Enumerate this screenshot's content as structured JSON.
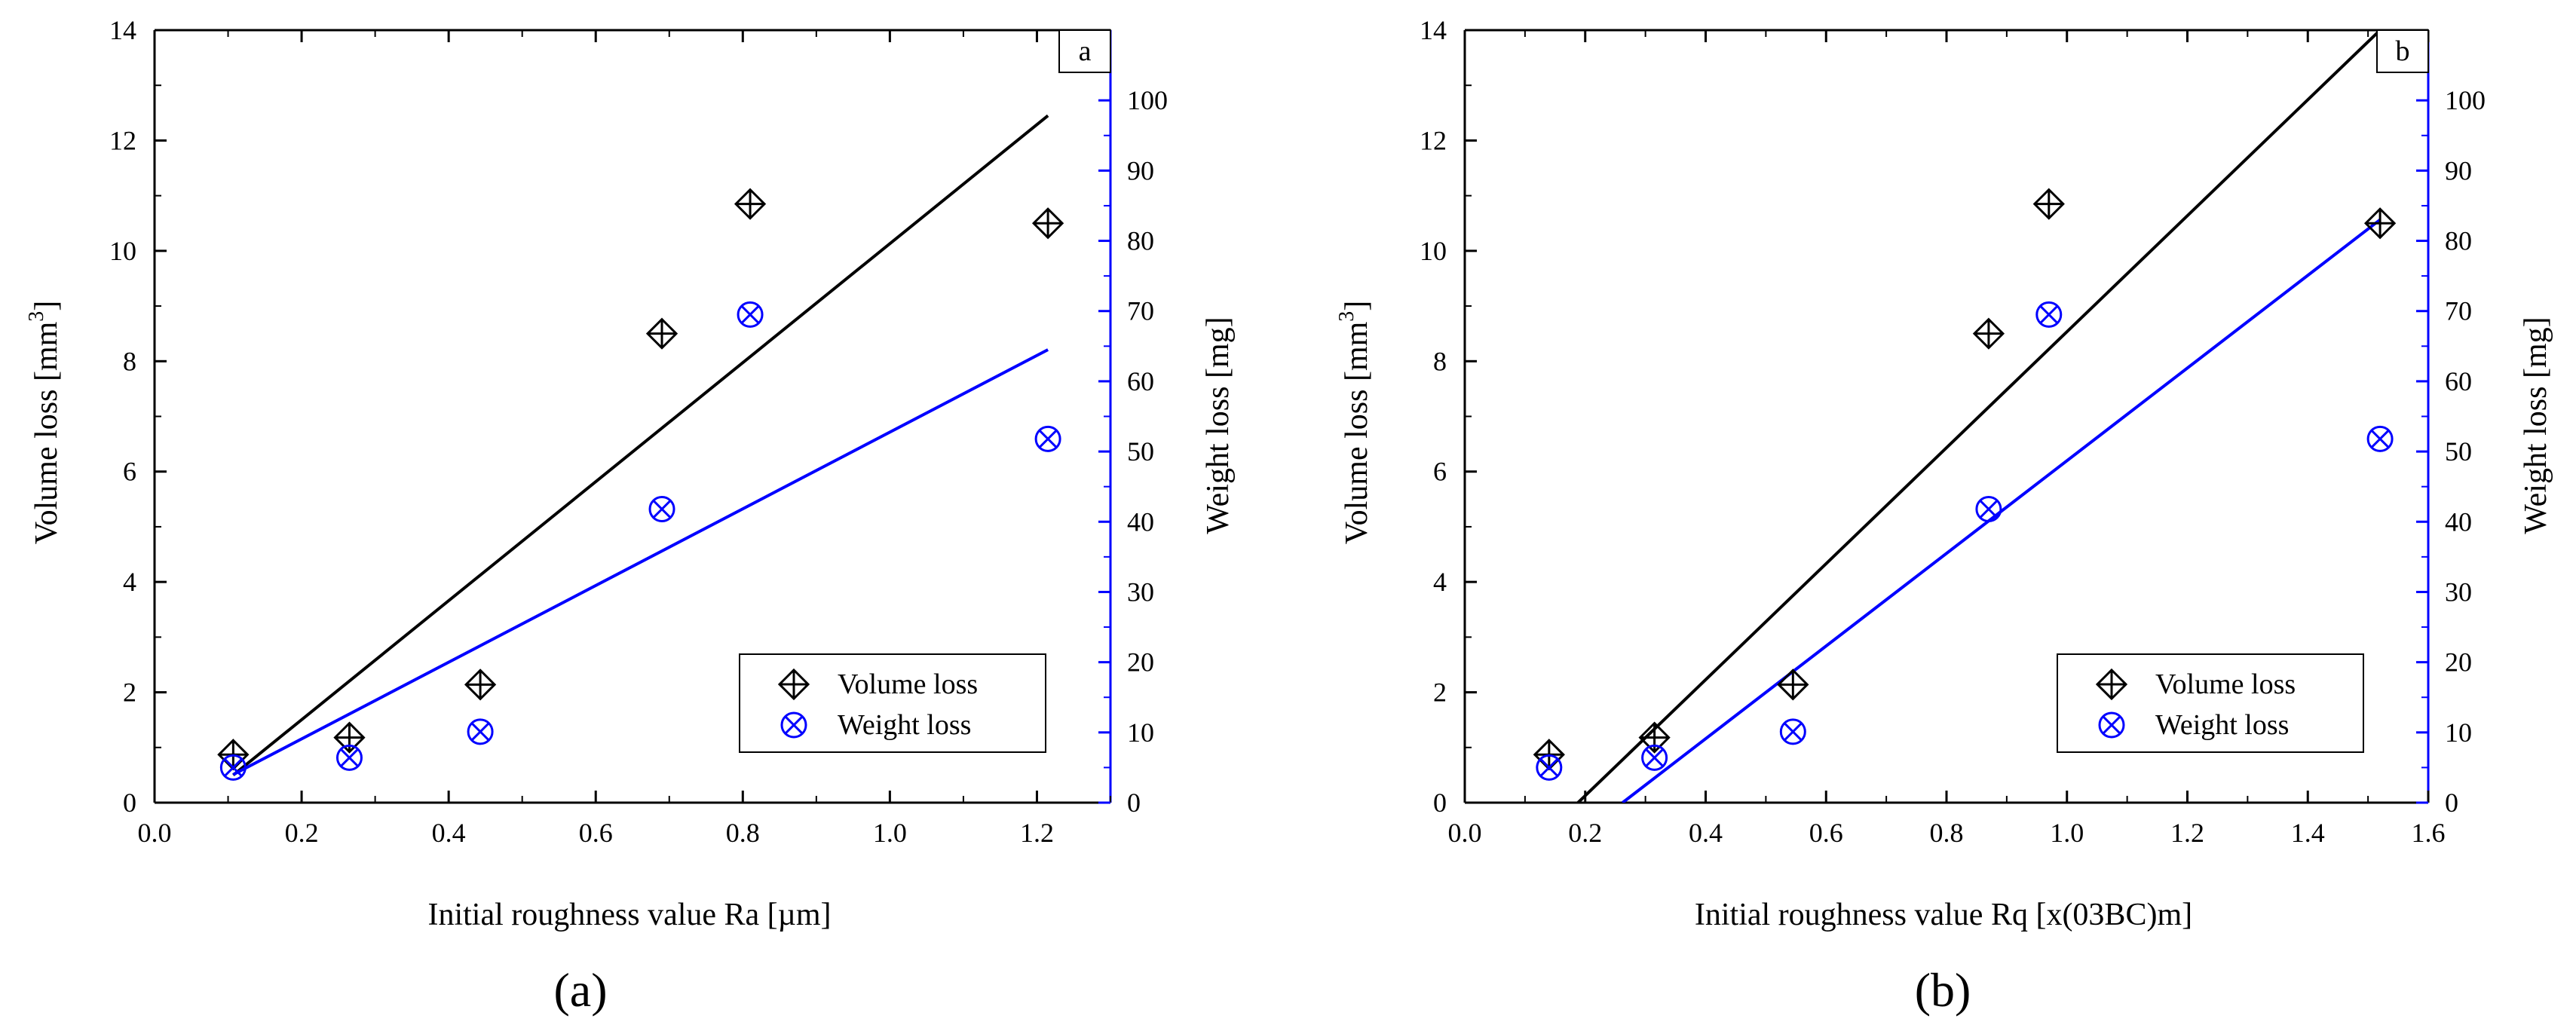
{
  "colors": {
    "volume": "#000000",
    "weight": "#0000ff",
    "axis_right": "#0000ff"
  },
  "chart_data": [
    {
      "type": "scatter",
      "panel_letter": "a",
      "caption": "(a)",
      "xlabel": "Initial roughness value Ra [µm]",
      "ylabel_left": "Volume loss [mm",
      "ylabel_left_sup": "3",
      "ylabel_left_end": "]",
      "ylabel_right": "Weight loss [mg]",
      "xlim": [
        0,
        1.3
      ],
      "ylim_left": [
        0,
        14
      ],
      "ylim_right": [
        0,
        110
      ],
      "x_ticks": [
        0,
        0.2,
        0.4,
        0.6,
        0.8,
        1.0,
        1.2
      ],
      "x_tick_labels": [
        "0.0",
        "0.2",
        "0.4",
        "0.6",
        "0.8",
        "1.0",
        "1.2"
      ],
      "y_left_ticks": [
        0,
        2,
        4,
        6,
        8,
        10,
        12,
        14
      ],
      "y_left_tick_labels": [
        "0",
        "2",
        "4",
        "6",
        "8",
        "10",
        "12",
        "14"
      ],
      "y_right_ticks": [
        0,
        10,
        20,
        30,
        40,
        50,
        60,
        70,
        80,
        90,
        100
      ],
      "y_right_tick_labels": [
        "0",
        "10",
        "20",
        "30",
        "40",
        "50",
        "60",
        "70",
        "80",
        "90",
        "100"
      ],
      "series": [
        {
          "name": "Volume loss",
          "axis": "left",
          "marker": "diamond-plus",
          "x": [
            0.107,
            0.265,
            0.443,
            0.69,
            0.81,
            1.215
          ],
          "y": [
            0.87,
            1.18,
            2.14,
            8.5,
            10.85,
            10.5
          ],
          "fit": {
            "x": [
              0.107,
              1.215
            ],
            "y": [
              0.5,
              12.45
            ]
          }
        },
        {
          "name": "Weight loss",
          "axis": "right",
          "marker": "circle-x",
          "x": [
            0.107,
            0.265,
            0.443,
            0.69,
            0.81,
            1.215
          ],
          "y": [
            5.0,
            6.4,
            10.1,
            41.8,
            69.5,
            51.8
          ],
          "fit": {
            "x": [
              0.107,
              1.215
            ],
            "y": [
              4.0,
              64.5
            ]
          }
        }
      ],
      "legend": {
        "position": "bottom-right",
        "entries": [
          "Volume loss",
          "Weight loss"
        ]
      }
    },
    {
      "type": "scatter",
      "panel_letter": "b",
      "caption": "(b)",
      "xlabel": "Initial roughness value Rq [x(03BC)m]",
      "ylabel_left": "Volume loss [mm",
      "ylabel_left_sup": "3",
      "ylabel_left_end": "]",
      "ylabel_right": "Weight loss [mg]",
      "xlim": [
        0,
        1.6
      ],
      "ylim_left": [
        0,
        14
      ],
      "ylim_right": [
        0,
        110
      ],
      "x_ticks": [
        0,
        0.2,
        0.4,
        0.6,
        0.8,
        1.0,
        1.2,
        1.4,
        1.6
      ],
      "x_tick_labels": [
        "0.0",
        "0.2",
        "0.4",
        "0.6",
        "0.8",
        "1.0",
        "1.2",
        "1.4",
        "1.6"
      ],
      "y_left_ticks": [
        0,
        2,
        4,
        6,
        8,
        10,
        12,
        14
      ],
      "y_left_tick_labels": [
        "0",
        "2",
        "4",
        "6",
        "8",
        "10",
        "12",
        "14"
      ],
      "y_right_ticks": [
        0,
        10,
        20,
        30,
        40,
        50,
        60,
        70,
        80,
        90,
        100
      ],
      "y_right_tick_labels": [
        "0",
        "10",
        "20",
        "30",
        "40",
        "50",
        "60",
        "70",
        "80",
        "90",
        "100"
      ],
      "series": [
        {
          "name": "Volume loss",
          "axis": "left",
          "marker": "diamond-plus",
          "x": [
            0.14,
            0.315,
            0.545,
            0.87,
            0.97,
            1.52
          ],
          "y": [
            0.87,
            1.18,
            2.14,
            8.5,
            10.85,
            10.5
          ],
          "fit": {
            "x": [
              0.188,
              1.52
            ],
            "y": [
              0,
              14
            ]
          }
        },
        {
          "name": "Weight loss",
          "axis": "right",
          "marker": "circle-x",
          "x": [
            0.14,
            0.315,
            0.545,
            0.87,
            0.97,
            1.52
          ],
          "y": [
            5.0,
            6.4,
            10.1,
            41.8,
            69.5,
            51.8
          ],
          "fit": {
            "x": [
              0.262,
              1.52
            ],
            "y": [
              0,
              83
            ]
          }
        }
      ],
      "legend": {
        "position": "bottom-right",
        "entries": [
          "Volume loss",
          "Weight loss"
        ]
      }
    }
  ]
}
